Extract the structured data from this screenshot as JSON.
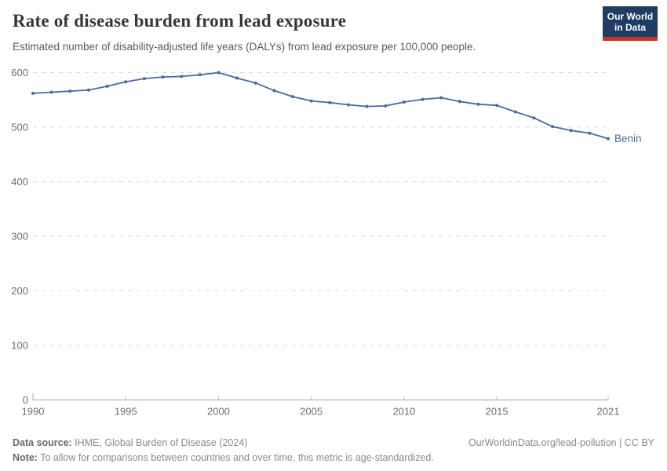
{
  "header": {
    "title": "Rate of disease burden from lead exposure",
    "subtitle": "Estimated number of disability-adjusted life years (DALYs) from lead exposure per 100,000 people.",
    "logo": {
      "line1": "Our World",
      "line2": "in Data"
    }
  },
  "chart_data": {
    "type": "line",
    "title": "Rate of disease burden from lead exposure",
    "subtitle": "Estimated number of disability-adjusted life years (DALYs) from lead exposure per 100,000 people.",
    "xlabel": "",
    "ylabel": "",
    "x": [
      1990,
      1991,
      1992,
      1993,
      1994,
      1995,
      1996,
      1997,
      1998,
      1999,
      2000,
      2001,
      2002,
      2003,
      2004,
      2005,
      2006,
      2007,
      2008,
      2009,
      2010,
      2011,
      2012,
      2013,
      2014,
      2015,
      2016,
      2017,
      2018,
      2019,
      2020,
      2021
    ],
    "series": [
      {
        "name": "Benin",
        "color": "#4c6a9c",
        "values": [
          562,
          564,
          566,
          568,
          575,
          583,
          589,
          592,
          593,
          596,
          600,
          590,
          581,
          567,
          556,
          548,
          545,
          541,
          538,
          539,
          546,
          551,
          554,
          547,
          542,
          540,
          528,
          517,
          501,
          494,
          489,
          479
        ]
      }
    ],
    "ylim": [
      0,
      600
    ],
    "yticks": [
      0,
      100,
      200,
      300,
      400,
      500,
      600
    ],
    "xticks": [
      1990,
      1995,
      2000,
      2005,
      2010,
      2015,
      2021
    ],
    "grid": "horizontal-dashed",
    "legend": "line-end-label",
    "grid_color": "#dadada",
    "axis_color": "#a3a3a3",
    "tick_label_color": "#6e6e6e"
  },
  "footer": {
    "datasource_label": "Data source:",
    "datasource_text": " IHME, Global Burden of Disease (2024)",
    "url": "OurWorldinData.org/lead-pollution | CC BY",
    "note_label": "Note:",
    "note_text": " To allow for comparisons between countries and over time, this metric is age-standardized."
  }
}
